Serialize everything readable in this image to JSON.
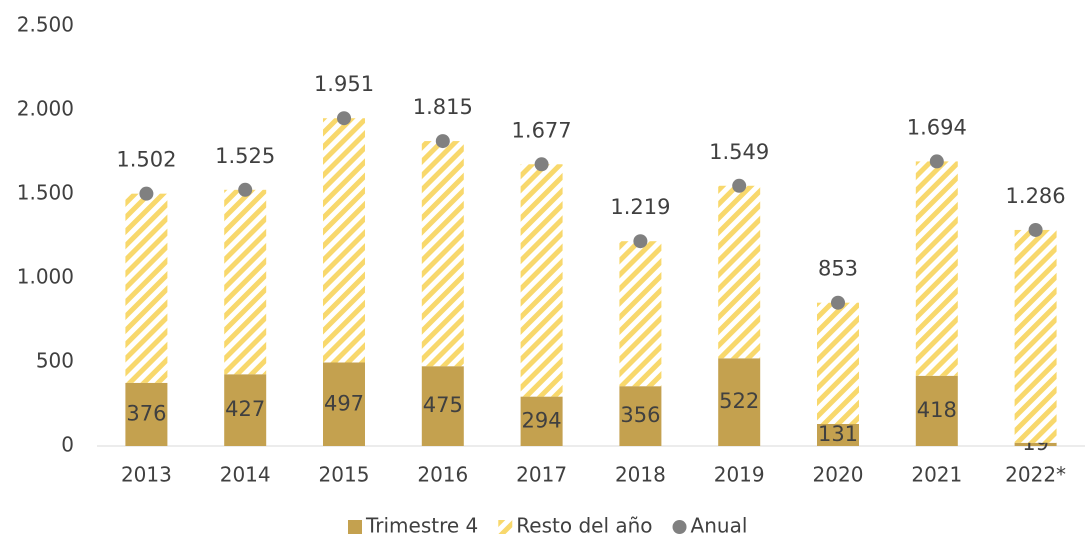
{
  "chart_data": {
    "type": "bar",
    "stacked": true,
    "categories": [
      "2013",
      "2014",
      "2015",
      "2016",
      "2017",
      "2018",
      "2019",
      "2020",
      "2021",
      "2022*"
    ],
    "series": [
      {
        "name": "Trimestre 4",
        "color": "#c4a14f",
        "values": [
          376,
          427,
          497,
          475,
          294,
          356,
          522,
          131,
          418,
          19
        ]
      },
      {
        "name": "Resto del año",
        "color": "#f8d86c",
        "pattern": "hatch",
        "values": [
          1126,
          1098,
          1454,
          1340,
          1383,
          863,
          1027,
          722,
          1276,
          1267
        ]
      },
      {
        "name": "Anual",
        "type": "scatter",
        "color": "#808080",
        "values": [
          1502,
          1525,
          1951,
          1815,
          1677,
          1219,
          1549,
          853,
          1694,
          1286
        ],
        "value_labels": [
          "1.502",
          "1.525",
          "1.951",
          "1.815",
          "1.677",
          "1.219",
          "1.549",
          "853",
          "1.694",
          "1.286"
        ]
      }
    ],
    "ylim": [
      0,
      2500
    ],
    "yticks": [
      0,
      500,
      {
        "value": 1000,
        "label": "1.000"
      },
      {
        "value": 1500,
        "label": "1.500"
      },
      {
        "value": 2000,
        "label": "2.000"
      },
      {
        "value": 2500,
        "label": "2.500"
      }
    ],
    "grid": false,
    "legend": "bottom"
  }
}
